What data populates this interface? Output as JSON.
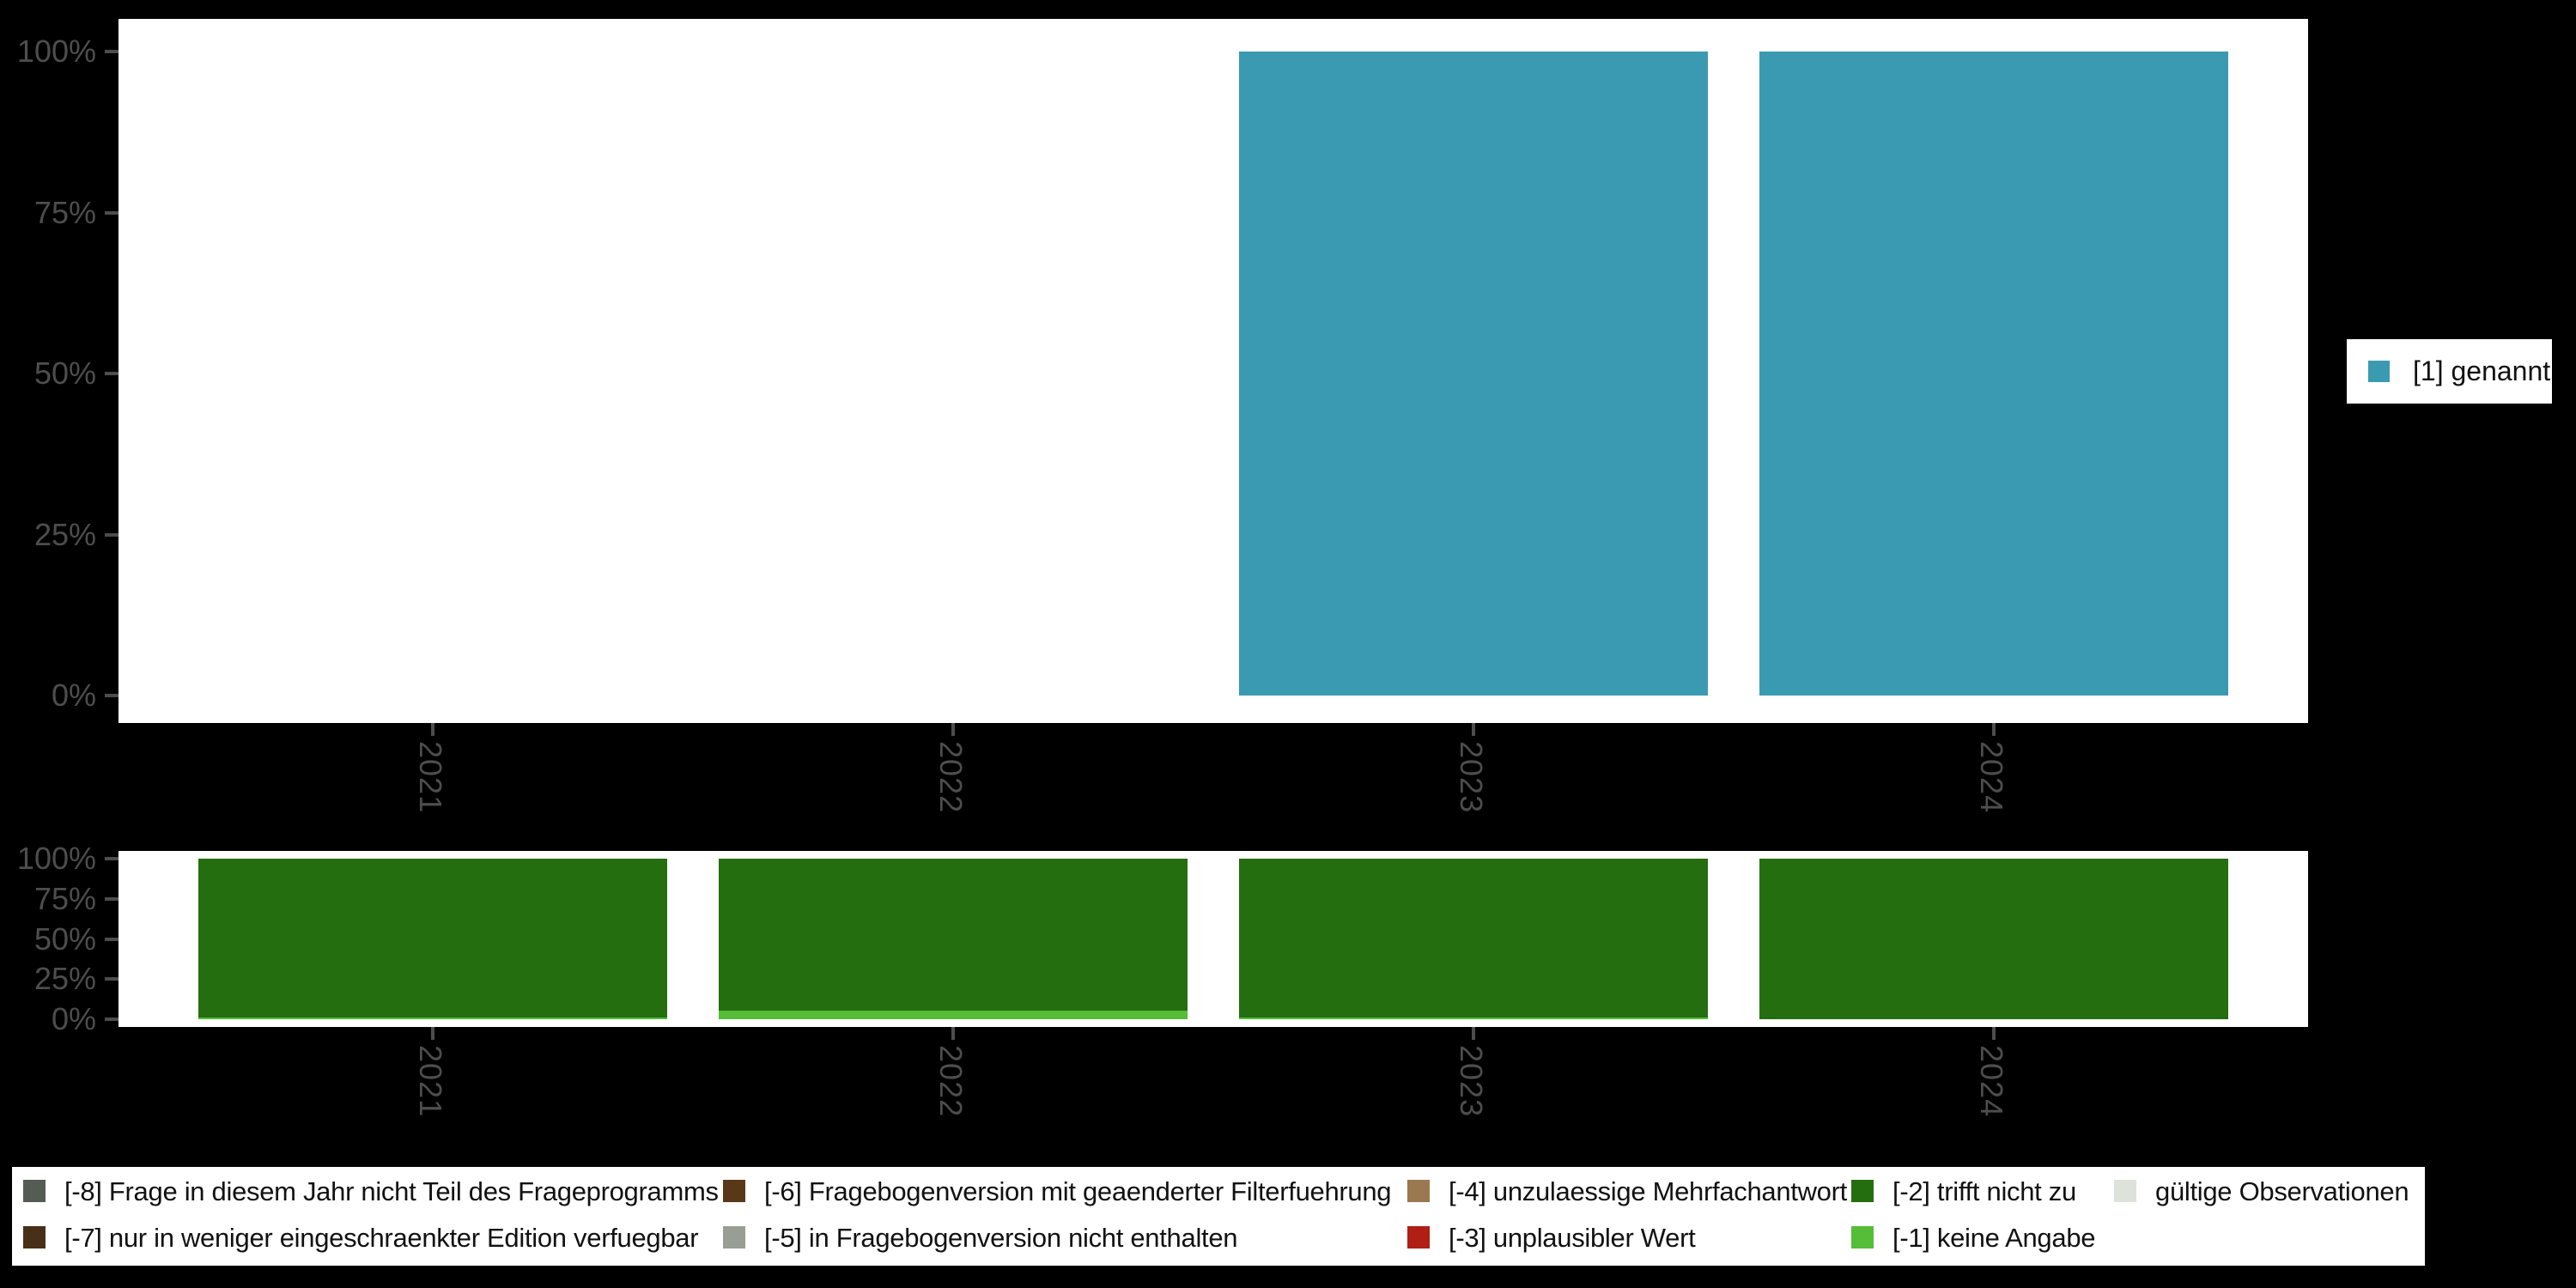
{
  "colors": {
    "background": "#000000",
    "panel": "#ffffff",
    "axis_text": "#4d4d4d",
    "genannt_teal": "#3a9ab1",
    "trifft_nicht_zu_green": "#256e0f",
    "keine_angabe_green": "#56bd38"
  },
  "chart_data": [
    {
      "id": "valid-values-per-wave",
      "type": "bar",
      "stacked": true,
      "unit": "percent",
      "title": "",
      "xlabel": "",
      "ylabel": "",
      "categories": [
        "2021",
        "2022",
        "2023",
        "2024"
      ],
      "series": [
        {
          "name": "[1] genannt",
          "color": "#3a9ab1",
          "values": [
            0,
            0,
            100,
            100
          ]
        }
      ],
      "yticks": [
        "0%",
        "25%",
        "50%",
        "75%",
        "100%"
      ],
      "ylim": [
        0,
        100
      ],
      "grid": false,
      "legend_position": "right"
    },
    {
      "id": "missing-values-per-wave",
      "type": "bar",
      "stacked": true,
      "unit": "percent",
      "title": "",
      "xlabel": "",
      "ylabel": "",
      "categories": [
        "2021",
        "2022",
        "2023",
        "2024"
      ],
      "series": [
        {
          "name": "[-1] keine Angabe",
          "color": "#56bd38",
          "values": [
            1,
            5,
            1,
            0
          ]
        },
        {
          "name": "[-2] trifft nicht zu",
          "color": "#256e0f",
          "values": [
            99,
            95,
            99,
            100
          ]
        }
      ],
      "yticks": [
        "0%",
        "25%",
        "50%",
        "75%",
        "100%"
      ],
      "ylim": [
        0,
        100
      ],
      "grid": false,
      "legend_position": "bottom"
    }
  ],
  "right_legend": {
    "items": [
      {
        "label": "[1] genannt",
        "color": "#3a9ab1"
      }
    ]
  },
  "bottom_legend": {
    "rows": 2,
    "items": [
      {
        "label": "[-8] Frage in diesem Jahr nicht Teil des Frageprogramms",
        "color": "#555c54",
        "col": 0,
        "row": 0
      },
      {
        "label": "[-7] nur in weniger eingeschraenkter Edition verfuegbar",
        "color": "#482f18",
        "col": 0,
        "row": 1
      },
      {
        "label": "[-6] Fragebogenversion mit geaenderter Filterfuehrung",
        "color": "#593818",
        "col": 1,
        "row": 0
      },
      {
        "label": "[-5] in Fragebogenversion nicht enthalten",
        "color": "#999e95",
        "col": 1,
        "row": 1
      },
      {
        "label": "[-4] unzulaessige Mehrfachantwort",
        "color": "#9b7850",
        "col": 2,
        "row": 0
      },
      {
        "label": "[-3] unplausibler Wert",
        "color": "#b01e15",
        "col": 2,
        "row": 1
      },
      {
        "label": "[-2] trifft nicht zu",
        "color": "#256e0f",
        "col": 3,
        "row": 0
      },
      {
        "label": "[-1] keine Angabe",
        "color": "#56bd38",
        "col": 3,
        "row": 1
      },
      {
        "label": "gültige Observationen",
        "color": "#dee3da",
        "col": 4,
        "row": 0
      }
    ]
  }
}
